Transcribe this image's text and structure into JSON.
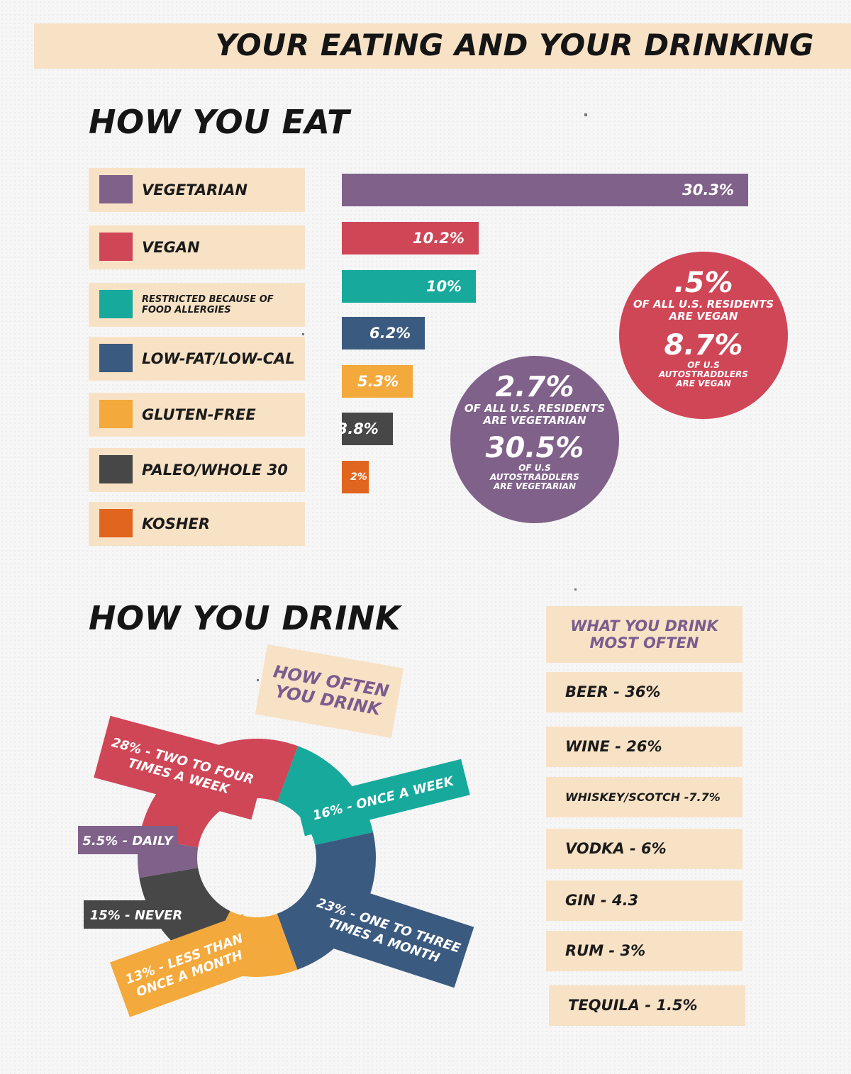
{
  "header": {
    "title": "YOUR EATING AND YOUR DRINKING"
  },
  "eat": {
    "title": "HOW YOU EAT"
  },
  "drink": {
    "title": "HOW YOU DRINK",
    "donut_title": "HOW OFTEN YOU DRINK"
  },
  "callouts": {
    "vegan": {
      "big1": ".5%",
      "text1": "OF ALL U.S. RESIDENTS ARE VEGAN",
      "big2": "8.7%",
      "text2": "OF U.S AUTOSTRADDLERS ARE VEGAN"
    },
    "vegetarian": {
      "big1": "2.7%",
      "text1": "OF ALL U.S. RESIDENTS ARE VEGETARIAN",
      "big2": "30.5%",
      "text2": "OF U.S AUTOSTRADDLERS ARE VEGETARIAN"
    }
  },
  "most_often": {
    "title": "WHAT YOU DRINK MOST OFTEN",
    "items": [
      "BEER - 36%",
      "WINE - 26%",
      "WHISKEY/SCOTCH -7.7%",
      "VODKA - 6%",
      "GIN - 4.3",
      "RUM - 3%",
      "TEQUILA - 1.5%"
    ]
  },
  "chart_data": [
    {
      "type": "bar",
      "title": "HOW YOU EAT",
      "categories": [
        "VEGETARIAN",
        "VEGAN",
        "RESTRICTED BECAUSE OF FOOD ALLERGIES",
        "LOW-FAT/LOW-CAL",
        "GLUTEN-FREE",
        "PALEO/WHOLE 30",
        "KOSHER"
      ],
      "values": [
        30.3,
        10.2,
        10,
        6.2,
        5.3,
        3.8,
        2
      ],
      "labels": [
        "30.3%",
        "10.2%",
        "10%",
        "6.2%",
        "5.3%",
        "3.8%",
        "2%"
      ],
      "colors": [
        "#7f6189",
        "#cf4657",
        "#16a99c",
        "#3b5a7f",
        "#f3a93c",
        "#474747",
        "#e0651e"
      ],
      "orientation": "horizontal",
      "legend": "left"
    },
    {
      "type": "pie",
      "title": "HOW OFTEN YOU DRINK",
      "categories": [
        "TWO TO FOUR TIMES A WEEK",
        "ONCE A WEEK",
        "ONE TO THREE TIMES A MONTH",
        "LESS THAN ONCE A MONTH",
        "NEVER",
        "DAILY"
      ],
      "values": [
        28,
        16,
        23,
        13,
        15,
        5.5
      ],
      "labels": [
        [
          "28% - TWO TO FOUR",
          "TIMES A WEEK"
        ],
        [
          "16% - ONCE A WEEK"
        ],
        [
          "23% - ONE TO THREE",
          "TIMES A MONTH"
        ],
        [
          "13% - LESS THAN",
          "ONCE A MONTH"
        ],
        [
          "15% - NEVER"
        ],
        [
          "5.5% - DAILY"
        ]
      ],
      "colors": [
        "#cf4657",
        "#16a99c",
        "#3b5a7f",
        "#f3a93c",
        "#474747",
        "#7f6189"
      ],
      "donut": true
    }
  ]
}
